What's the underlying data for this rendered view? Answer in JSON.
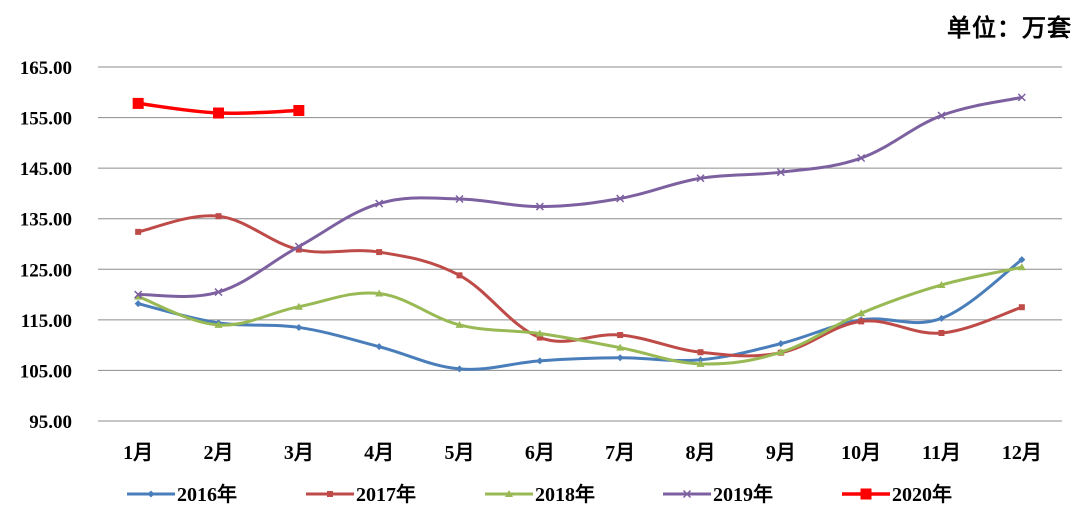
{
  "chart_data": {
    "type": "line",
    "unit_label": "单位：万套",
    "categories": [
      "1月",
      "2月",
      "3月",
      "4月",
      "5月",
      "6月",
      "7月",
      "8月",
      "9月",
      "10月",
      "11月",
      "12月"
    ],
    "ylim": [
      95,
      165
    ],
    "yticks": [
      "95.00",
      "105.00",
      "115.00",
      "125.00",
      "135.00",
      "145.00",
      "155.00",
      "165.00"
    ],
    "grid": true,
    "legend_position": "bottom",
    "series": [
      {
        "name": "2016年",
        "color": "#4a7ebb",
        "marker": "diamond",
        "values": [
          118.2,
          114.4,
          113.5,
          109.7,
          105.3,
          106.9,
          107.5,
          107.1,
          110.3,
          115.0,
          115.3,
          126.9
        ]
      },
      {
        "name": "2017年",
        "color": "#be4b48",
        "marker": "square",
        "values": [
          132.4,
          135.5,
          128.9,
          128.4,
          123.8,
          111.5,
          112.0,
          108.6,
          108.5,
          114.7,
          112.4,
          117.5
        ]
      },
      {
        "name": "2018年",
        "color": "#98b954",
        "marker": "triangle",
        "values": [
          119.6,
          114.0,
          117.6,
          120.2,
          114.0,
          112.3,
          109.5,
          106.3,
          108.6,
          116.3,
          121.9,
          125.4
        ]
      },
      {
        "name": "2019年",
        "color": "#7d60a0",
        "marker": "x",
        "values": [
          120.0,
          120.5,
          129.5,
          138.0,
          138.9,
          137.4,
          139.0,
          143.0,
          144.2,
          147.0,
          155.4,
          159.0
        ]
      },
      {
        "name": "2020年",
        "color": "#ff0000",
        "marker": "square-big",
        "values": [
          157.8,
          155.9,
          156.4,
          null,
          null,
          null,
          null,
          null,
          null,
          null,
          null,
          null
        ]
      }
    ]
  }
}
